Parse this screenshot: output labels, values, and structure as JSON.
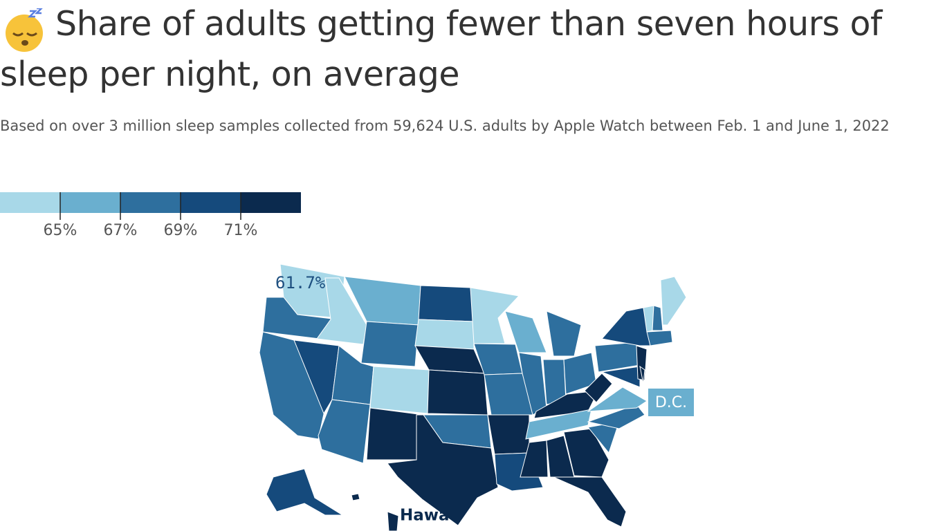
{
  "title": "Share of adults getting fewer than seven hours of sleep per night, on average",
  "subtitle": "Based on over 3 million sleep samples collected from 59,624 U.S. adults by Apple Watch between Feb. 1 and June 1, 2022",
  "legend": {
    "colors": [
      "#a8d8e8",
      "#6aafcf",
      "#2e6f9e",
      "#154a7c",
      "#0b2a4e"
    ],
    "ticks": [
      {
        "value": 65,
        "label": "65%"
      },
      {
        "value": 67,
        "label": "67%"
      },
      {
        "value": 69,
        "label": "69%"
      },
      {
        "value": 71,
        "label": "71%"
      }
    ]
  },
  "annotations": [
    {
      "value": 61.7,
      "label": "61.7%"
    },
    {
      "label": "D.C.",
      "color": "#6aafcf"
    },
    {
      "label": "Hawa"
    }
  ],
  "region_colors": [
    "#a8d8e8",
    "#2e6f9e",
    "#2e6f9e",
    "#a8d8e8",
    "#154a7c",
    "#6aafcf",
    "#2e6f9e",
    "#2e6f9e",
    "#2e6f9e",
    "#a8d8e8",
    "#0b2a4e",
    "#154a7c",
    "#a8d8e8",
    "#0b2a4e",
    "#0b2a4e",
    "#2e6f9e",
    "#0b2a4e",
    "#a8d8e8",
    "#2e6f9e",
    "#2e6f9e",
    "#0b2a4e",
    "#154a7c",
    "#6aafcf",
    "#2e6f9e",
    "#2e6f9e",
    "#2e6f9e",
    "#2e6f9e",
    "#0b2a4e",
    "#6aafcf",
    "#0b2a4e",
    "#0b2a4e",
    "#0b2a4e",
    "#0b2a4e",
    "#2e6f9e",
    "#2e6f9e",
    "#6aafcf",
    "#0b2a4e",
    "#2e6f9e",
    "#154a7c",
    "#154a7c",
    "#0b2a4e",
    "#0b2a4e",
    "#2e6f9e",
    "#a8d8e8",
    "#2e6f9e",
    "#a8d8e8",
    "#154a7c",
    "#0b2a4e",
    "#0b2a4e"
  ]
}
